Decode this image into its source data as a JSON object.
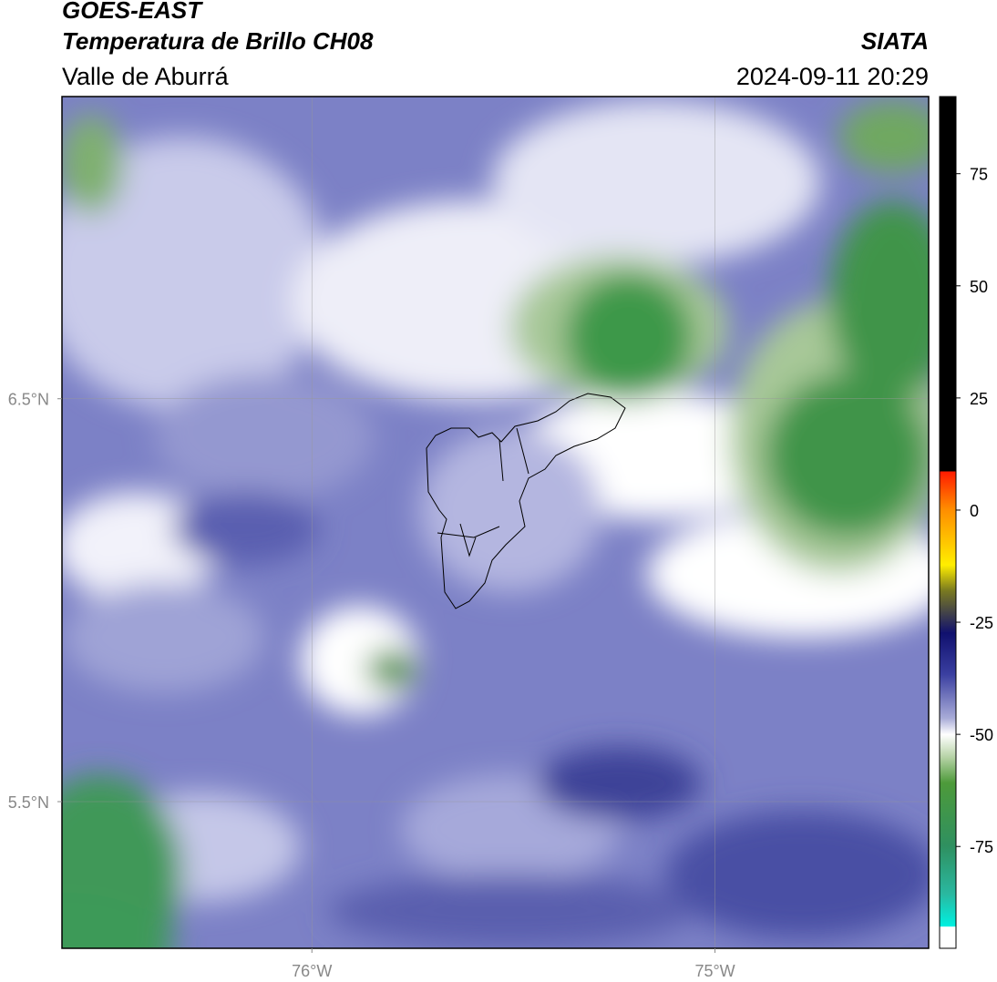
{
  "title": {
    "satellite": "GOES-EAST",
    "product": "Temperatura de Brillo CH08",
    "region": "Valle de Aburrá",
    "source": "SIATA",
    "datetime": "2024-09-11 20:29"
  },
  "map": {
    "xlim": [
      -76.62,
      -74.47
    ],
    "ylim": [
      5.136,
      7.25
    ],
    "xticks": [
      {
        "value": -76,
        "label": "76°W"
      },
      {
        "value": -75,
        "label": "75°W"
      }
    ],
    "yticks": [
      {
        "value": 6.5,
        "label": "6.5°N"
      },
      {
        "value": 5.5,
        "label": "5.5°N"
      }
    ],
    "grid": true
  },
  "colorbar": {
    "lim": [
      -97.7,
      92.2
    ],
    "ticks": [
      75,
      50,
      25,
      0,
      -25,
      -50,
      -75
    ]
  }
}
